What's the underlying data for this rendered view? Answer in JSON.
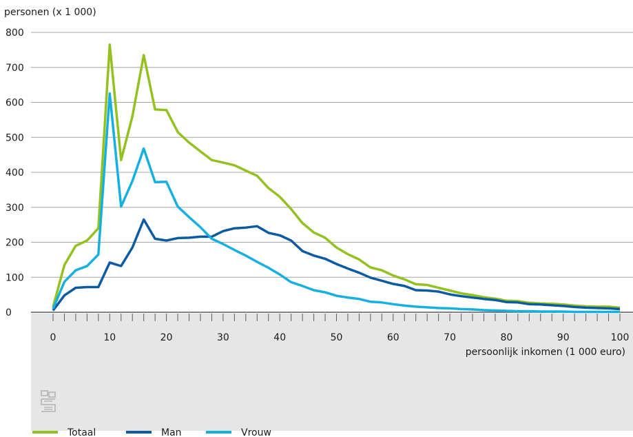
{
  "chart_data": {
    "type": "line",
    "ylabel": "personen (x 1 000)",
    "xlabel": "persoonlijk inkomen (1 000 euro)",
    "ylim": [
      0,
      800
    ],
    "xlim": [
      0,
      100
    ],
    "yticks": [
      0,
      100,
      200,
      300,
      400,
      500,
      600,
      700,
      800
    ],
    "xticks": [
      0,
      10,
      20,
      30,
      40,
      50,
      60,
      70,
      80,
      90,
      100
    ],
    "grid": "horizontal",
    "legend_position": "bottom",
    "x": [
      0,
      2,
      4,
      6,
      8,
      10,
      12,
      14,
      16,
      18,
      20,
      22,
      24,
      26,
      28,
      30,
      32,
      34,
      36,
      38,
      40,
      42,
      44,
      46,
      48,
      50,
      52,
      54,
      56,
      58,
      60,
      62,
      64,
      66,
      68,
      70,
      72,
      74,
      76,
      78,
      80,
      82,
      84,
      86,
      88,
      90,
      92,
      94,
      96,
      98,
      100
    ],
    "series": [
      {
        "name": "Totaal",
        "color": "#93c11f",
        "values": [
          15,
          135,
          190,
          205,
          240,
          765,
          435,
          560,
          735,
          580,
          578,
          515,
          485,
          460,
          435,
          428,
          420,
          405,
          390,
          355,
          330,
          295,
          255,
          228,
          213,
          185,
          166,
          151,
          128,
          120,
          105,
          94,
          80,
          78,
          70,
          62,
          54,
          49,
          43,
          39,
          33,
          32,
          27,
          25,
          24,
          22,
          19,
          17,
          16,
          16,
          13
        ]
      },
      {
        "name": "Man",
        "color": "#0a5ba1",
        "values": [
          5,
          48,
          70,
          72,
          72,
          142,
          132,
          185,
          265,
          210,
          205,
          212,
          213,
          216,
          216,
          232,
          240,
          242,
          246,
          227,
          220,
          205,
          175,
          162,
          153,
          138,
          125,
          113,
          99,
          90,
          81,
          75,
          63,
          62,
          59,
          51,
          46,
          42,
          38,
          35,
          29,
          28,
          23,
          22,
          20,
          18,
          15,
          13,
          12,
          11,
          9
        ]
      },
      {
        "name": "Vrouw",
        "color": "#16b0e0",
        "values": [
          10,
          87,
          120,
          132,
          165,
          625,
          302,
          375,
          468,
          372,
          373,
          302,
          272,
          243,
          210,
          195,
          178,
          162,
          144,
          127,
          108,
          86,
          75,
          63,
          57,
          47,
          42,
          38,
          30,
          28,
          23,
          19,
          16,
          14,
          12,
          11,
          9,
          8,
          6,
          5,
          4,
          3,
          3,
          2,
          2,
          2,
          1,
          1,
          1,
          1,
          1
        ]
      }
    ]
  },
  "legend": [
    {
      "label": "Totaal",
      "color": "#93c11f"
    },
    {
      "label": "Man",
      "color": "#0a5ba1"
    },
    {
      "label": "Vrouw",
      "color": "#16b0e0"
    }
  ],
  "logo": {
    "icon": "cbs-logo-icon",
    "text": "cbs",
    "color": "#b9b9b9"
  },
  "colors": {
    "axis_band": "#e6e6e6",
    "grid": "#a6a6a6",
    "axis": "#5a5a5a"
  }
}
